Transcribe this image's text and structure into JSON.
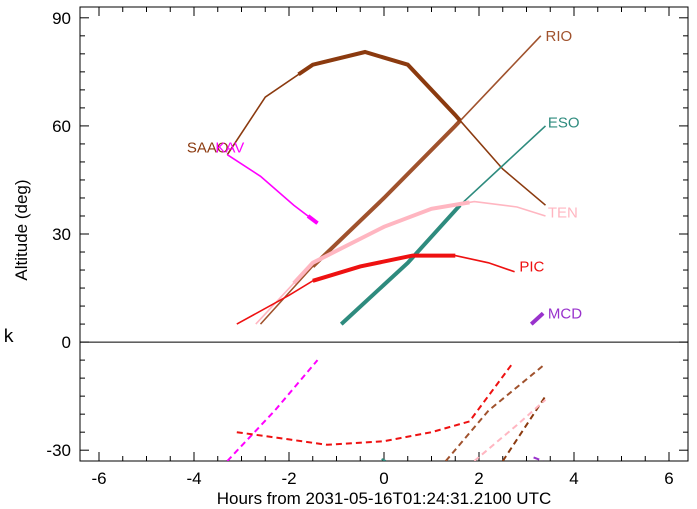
{
  "chart_data": {
    "type": "line",
    "xlabel": "Hours from 2031-05-16T01:24:31.2100 UTC",
    "ylabel": "Altitude (deg)",
    "xlim": [
      -6.4,
      6.4
    ],
    "ylim": [
      -33,
      93
    ],
    "xticks": [
      -6,
      -4,
      -2,
      0,
      2,
      4,
      6
    ],
    "xtick_labels": [
      "-6",
      "-4",
      "-2",
      "0",
      "2",
      "4",
      "6"
    ],
    "yticks": [
      -30,
      0,
      30,
      60,
      90
    ],
    "ytick_labels": [
      "-30",
      "0",
      "30",
      "60",
      "90"
    ],
    "side_mark": "k",
    "grid": false,
    "zero_line": true,
    "series": [
      {
        "name": "RIO",
        "color": "#a0522d",
        "label_at": [
          3.4,
          85
        ],
        "points": [
          [
            -2.6,
            5
          ],
          [
            -1.5,
            21
          ],
          [
            0,
            40
          ],
          [
            1.5,
            60
          ],
          [
            3.3,
            85
          ]
        ],
        "thick_from": -1.5,
        "thick_to": 1.6,
        "below_horizon": [
          [
            1.3,
            -33
          ],
          [
            2.2,
            -19
          ],
          [
            3.4,
            -6
          ]
        ]
      },
      {
        "name": "SAAO",
        "color": "#8b3a0f",
        "label_at": [
          -4.15,
          54
        ],
        "points": [
          [
            -3.3,
            52
          ],
          [
            -2.5,
            68
          ],
          [
            -1.5,
            77
          ],
          [
            -0.4,
            80.5
          ],
          [
            0.5,
            77
          ],
          [
            1.5,
            63
          ],
          [
            2.5,
            48
          ],
          [
            3.4,
            38
          ]
        ],
        "thick_from": -1.8,
        "thick_to": 1.6,
        "below_horizon": [
          [
            2.5,
            -33
          ],
          [
            3.4,
            -15
          ]
        ]
      },
      {
        "name": "KAV",
        "color": "#ff00ff",
        "label_at": [
          -3.55,
          54
        ],
        "points": [
          [
            -3.3,
            52
          ],
          [
            -2.6,
            46
          ],
          [
            -1.9,
            38
          ],
          [
            -1.4,
            33
          ]
        ],
        "thick_from": -1.6,
        "thick_to": -1.4,
        "below_horizon": [
          [
            -3.3,
            -33
          ],
          [
            -2.3,
            -19
          ],
          [
            -1.4,
            -5
          ]
        ]
      },
      {
        "name": "ESO",
        "color": "#2e8b7e",
        "label_at": [
          3.45,
          61
        ],
        "points": [
          [
            -0.9,
            5
          ],
          [
            0.5,
            22
          ],
          [
            1.6,
            38
          ],
          [
            3.4,
            60
          ]
        ],
        "thick_from": -0.9,
        "thick_to": 1.6,
        "below_horizon": [
          [
            -0.05,
            -33
          ]
        ]
      },
      {
        "name": "TEN",
        "color": "#ffb6c1",
        "label_at": [
          3.45,
          36
        ],
        "points": [
          [
            -2.7,
            5
          ],
          [
            -1.5,
            22
          ],
          [
            0,
            32
          ],
          [
            1,
            37
          ],
          [
            1.9,
            39
          ],
          [
            2.8,
            37.5
          ],
          [
            3.4,
            35
          ]
        ],
        "thick_from": -1.9,
        "thick_to": 1.8,
        "below_horizon": [
          [
            1.9,
            -33
          ],
          [
            2.8,
            -23
          ],
          [
            3.4,
            -16
          ]
        ]
      },
      {
        "name": "PIC",
        "color": "#ee1111",
        "label_at": [
          2.85,
          21
        ],
        "points": [
          [
            -3.1,
            5
          ],
          [
            -2,
            13
          ],
          [
            -1.5,
            17
          ],
          [
            -0.5,
            21
          ],
          [
            0.6,
            24
          ],
          [
            1.5,
            24
          ],
          [
            2.2,
            22
          ],
          [
            2.75,
            19.5
          ]
        ],
        "thick_from": -1.5,
        "thick_to": 1.5,
        "below_horizon": [
          [
            -3.1,
            -25
          ],
          [
            -2,
            -27
          ],
          [
            -1.2,
            -28.5
          ],
          [
            0,
            -27.5
          ],
          [
            1,
            -25
          ],
          [
            1.8,
            -22
          ],
          [
            2.7,
            -6
          ]
        ]
      },
      {
        "name": "MCD",
        "color": "#9932cc",
        "label_at": [
          3.45,
          8
        ],
        "points": [
          [
            3.1,
            5
          ],
          [
            3.35,
            8
          ]
        ],
        "thick_from": 3.1,
        "thick_to": 3.35,
        "below_horizon": [
          [
            3.15,
            -32
          ],
          [
            3.35,
            -33
          ]
        ]
      }
    ]
  }
}
